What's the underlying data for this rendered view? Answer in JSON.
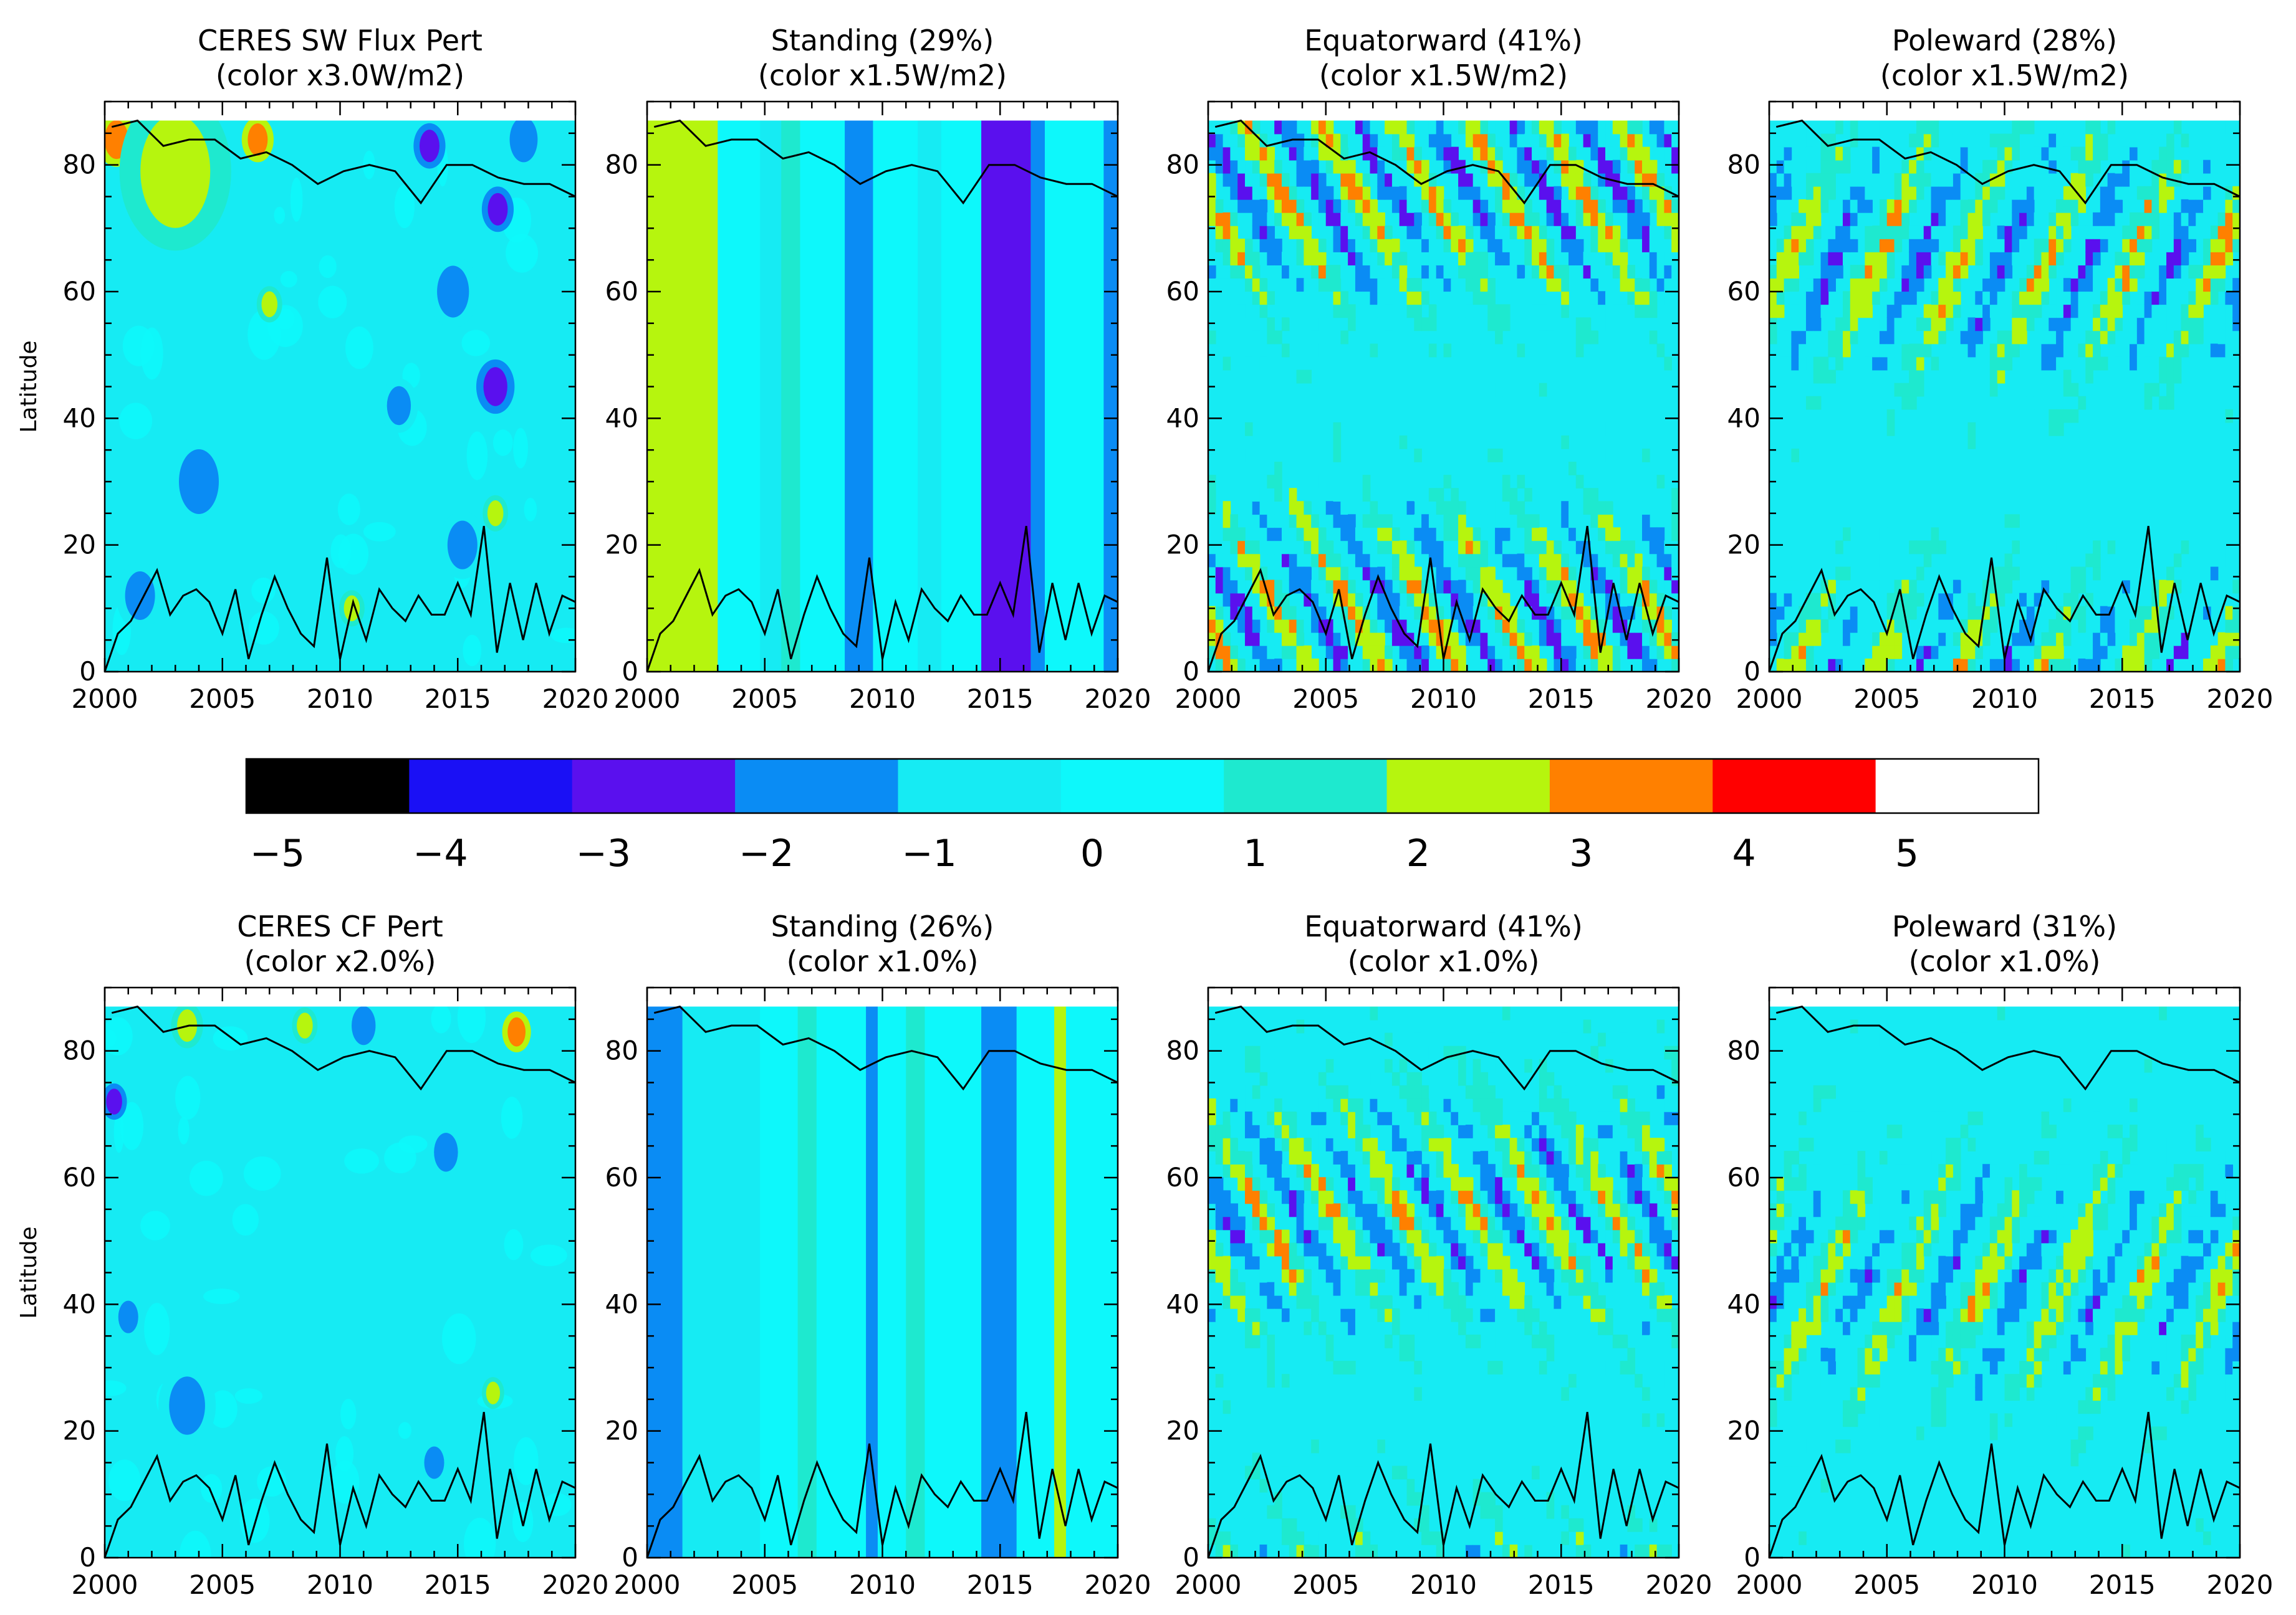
{
  "figure": {
    "colorbar": {
      "ticks": [
        "−5",
        "−4",
        "−3",
        "−2",
        "−1",
        "0",
        "1",
        "2",
        "3",
        "4",
        "5"
      ],
      "levels": 11,
      "colors": [
        "#000000",
        "#1a10f5",
        "#5a10ee",
        "#0a8cf4",
        "#16ebf3",
        "#0df8fb",
        "#1ee9cf",
        "#b6f50e",
        "#ff8000",
        "#ff0000",
        "#ffffff"
      ]
    }
  },
  "chart_data": [
    {
      "type": "heatmap",
      "panel": "sw-ceres",
      "title": [
        "CERES SW Flux Pert",
        "(color x3.0W/m2)"
      ],
      "ylabel": "Latitude",
      "x_ticks": [
        "2000",
        "2005",
        "2010",
        "2015",
        "2020"
      ],
      "y_ticks": [
        "0",
        "20",
        "40",
        "60",
        "80"
      ],
      "xlim": [
        2000,
        2020
      ],
      "ylim": [
        0,
        90
      ],
      "pattern": "ceres",
      "anomalies": [
        {
          "t": 2000.5,
          "lat": 84,
          "v": 3,
          "s": 1.2
        },
        {
          "t": 2003.0,
          "lat": 79,
          "v": 2,
          "s": 3.5
        },
        {
          "t": 2006.5,
          "lat": 84,
          "v": 3,
          "s": 1.0
        },
        {
          "t": 2013.8,
          "lat": 83,
          "v": -3,
          "s": 1.0
        },
        {
          "t": 2017.8,
          "lat": 84,
          "v": -2,
          "s": 1.4
        },
        {
          "t": 2014.8,
          "lat": 60,
          "v": -2,
          "s": 1.6
        },
        {
          "t": 2016.7,
          "lat": 73,
          "v": -3,
          "s": 1.0
        },
        {
          "t": 2016.6,
          "lat": 45,
          "v": -3,
          "s": 1.2
        },
        {
          "t": 2015.2,
          "lat": 20,
          "v": -2,
          "s": 1.5
        },
        {
          "t": 2007.0,
          "lat": 58,
          "v": 2,
          "s": 0.8
        },
        {
          "t": 2010.5,
          "lat": 10,
          "v": 2,
          "s": 0.8
        },
        {
          "t": 2016.6,
          "lat": 25,
          "v": 2,
          "s": 0.8
        },
        {
          "t": 2004.0,
          "lat": 30,
          "v": -2,
          "s": 2.0
        },
        {
          "t": 2012.5,
          "lat": 42,
          "v": -2,
          "s": 1.2
        },
        {
          "t": 2001.5,
          "lat": 12,
          "v": -2,
          "s": 1.5
        }
      ],
      "ice_series": [
        0,
        6,
        8,
        12,
        16,
        9,
        12,
        13,
        11,
        6,
        13,
        2,
        9,
        15,
        10,
        6,
        4,
        18,
        2,
        11,
        5,
        13,
        10,
        8,
        12,
        9,
        9,
        14,
        9,
        23,
        3,
        14,
        5,
        14,
        6,
        12,
        11
      ],
      "extent_series": [
        86,
        87,
        83,
        84,
        84,
        81,
        82,
        80,
        77,
        79,
        80,
        79,
        74,
        80,
        80,
        78,
        77,
        77,
        75
      ]
    },
    {
      "type": "heatmap",
      "panel": "sw-standing",
      "title": [
        "Standing (29%)",
        "(color x1.5W/m2)"
      ],
      "ylabel": "",
      "x_ticks": [
        "2000",
        "2005",
        "2010",
        "2015",
        "2020"
      ],
      "y_ticks": [
        "0",
        "20",
        "40",
        "60",
        "80"
      ],
      "xlim": [
        2000,
        2020
      ],
      "ylim": [
        0,
        90
      ],
      "pattern": "standing",
      "bands": [
        {
          "t0": 2000.0,
          "t1": 2003.0,
          "v": 2
        },
        {
          "t0": 2003.0,
          "t1": 2004.8,
          "v": 0
        },
        {
          "t0": 2004.8,
          "t1": 2005.7,
          "v": -1
        },
        {
          "t0": 2005.7,
          "t1": 2006.5,
          "v": 1
        },
        {
          "t0": 2006.5,
          "t1": 2008.4,
          "v": 0
        },
        {
          "t0": 2008.4,
          "t1": 2009.6,
          "v": -2
        },
        {
          "t0": 2009.6,
          "t1": 2011.5,
          "v": 0
        },
        {
          "t0": 2011.5,
          "t1": 2012.5,
          "v": -1
        },
        {
          "t0": 2012.5,
          "t1": 2014.2,
          "v": 0
        },
        {
          "t0": 2014.2,
          "t1": 2016.3,
          "v": -3
        },
        {
          "t0": 2016.3,
          "t1": 2016.9,
          "v": -2
        },
        {
          "t0": 2016.9,
          "t1": 2019.4,
          "v": 0
        },
        {
          "t0": 2019.4,
          "t1": 2020.0,
          "v": -2
        }
      ],
      "ice_series": [
        0,
        6,
        8,
        12,
        16,
        9,
        12,
        13,
        11,
        6,
        13,
        2,
        9,
        15,
        10,
        6,
        4,
        18,
        2,
        11,
        5,
        13,
        10,
        8,
        12,
        9,
        9,
        14,
        9,
        23,
        3,
        14,
        5,
        14,
        6,
        12,
        11
      ],
      "extent_series": [
        86,
        87,
        83,
        84,
        84,
        81,
        82,
        80,
        77,
        79,
        80,
        79,
        74,
        80,
        80,
        78,
        77,
        77,
        75
      ]
    },
    {
      "type": "heatmap",
      "panel": "sw-equatorward",
      "title": [
        "Equatorward (41%)",
        "(color x1.5W/m2)"
      ],
      "ylabel": "",
      "x_ticks": [
        "2000",
        "2005",
        "2010",
        "2015",
        "2020"
      ],
      "y_ticks": [
        "0",
        "20",
        "40",
        "60",
        "80"
      ],
      "xlim": [
        2000,
        2020
      ],
      "ylim": [
        0,
        90
      ],
      "pattern": "wave",
      "direction": "equatorward",
      "wave": {
        "speed": 7.0,
        "period": 3.2,
        "amp": 3.2,
        "seed": 1
      },
      "ice_series": [
        0,
        6,
        8,
        12,
        16,
        9,
        12,
        13,
        11,
        6,
        13,
        2,
        9,
        15,
        10,
        6,
        4,
        18,
        2,
        11,
        5,
        13,
        10,
        8,
        12,
        9,
        9,
        14,
        9,
        23,
        3,
        14,
        5,
        14,
        6,
        12,
        11
      ],
      "extent_series": [
        86,
        87,
        83,
        84,
        84,
        81,
        82,
        80,
        77,
        79,
        80,
        79,
        74,
        80,
        80,
        78,
        77,
        77,
        75
      ]
    },
    {
      "type": "heatmap",
      "panel": "sw-poleward",
      "title": [
        "Poleward (28%)",
        "(color x1.5W/m2)"
      ],
      "ylabel": "",
      "x_ticks": [
        "2000",
        "2005",
        "2010",
        "2015",
        "2020"
      ],
      "y_ticks": [
        "0",
        "20",
        "40",
        "60",
        "80"
      ],
      "xlim": [
        2000,
        2020
      ],
      "ylim": [
        0,
        90
      ],
      "pattern": "wave",
      "direction": "poleward",
      "wave": {
        "speed": 9.0,
        "period": 3.6,
        "amp": 2.8,
        "seed": 2
      },
      "ice_series": [
        0,
        6,
        8,
        12,
        16,
        9,
        12,
        13,
        11,
        6,
        13,
        2,
        9,
        15,
        10,
        6,
        4,
        18,
        2,
        11,
        5,
        13,
        10,
        8,
        12,
        9,
        9,
        14,
        9,
        23,
        3,
        14,
        5,
        14,
        6,
        12,
        11
      ],
      "extent_series": [
        86,
        87,
        83,
        84,
        84,
        81,
        82,
        80,
        77,
        79,
        80,
        79,
        74,
        80,
        80,
        78,
        77,
        77,
        75
      ]
    },
    {
      "type": "heatmap",
      "panel": "cf-ceres",
      "title": [
        "CERES CF Pert",
        "(color x2.0%)"
      ],
      "ylabel": "Latitude",
      "x_ticks": [
        "2000",
        "2005",
        "2010",
        "2015",
        "2020"
      ],
      "y_ticks": [
        "0",
        "20",
        "40",
        "60",
        "80"
      ],
      "xlim": [
        2000,
        2020
      ],
      "ylim": [
        0,
        90
      ],
      "pattern": "ceres",
      "anomalies": [
        {
          "t": 2000.4,
          "lat": 72,
          "v": -3,
          "s": 0.8
        },
        {
          "t": 2003.5,
          "lat": 84,
          "v": 2,
          "s": 1.0
        },
        {
          "t": 2008.5,
          "lat": 84,
          "v": 2,
          "s": 0.8
        },
        {
          "t": 2017.5,
          "lat": 83,
          "v": 3,
          "s": 0.9
        },
        {
          "t": 2014.5,
          "lat": 64,
          "v": -2,
          "s": 1.2
        },
        {
          "t": 2003.5,
          "lat": 24,
          "v": -2,
          "s": 1.8
        },
        {
          "t": 2016.5,
          "lat": 26,
          "v": 2,
          "s": 0.7
        },
        {
          "t": 2001.0,
          "lat": 38,
          "v": -2,
          "s": 1.0
        },
        {
          "t": 2014.0,
          "lat": 15,
          "v": -2,
          "s": 1.0
        },
        {
          "t": 2011.0,
          "lat": 84,
          "v": -2,
          "s": 1.2
        }
      ],
      "ice_series": [
        0,
        6,
        8,
        12,
        16,
        9,
        12,
        13,
        11,
        6,
        13,
        2,
        9,
        15,
        10,
        6,
        4,
        18,
        2,
        11,
        5,
        13,
        10,
        8,
        12,
        9,
        9,
        14,
        9,
        23,
        3,
        14,
        5,
        14,
        6,
        12,
        11
      ],
      "extent_series": [
        86,
        87,
        83,
        84,
        84,
        81,
        82,
        80,
        77,
        79,
        80,
        79,
        74,
        80,
        80,
        78,
        77,
        77,
        75
      ]
    },
    {
      "type": "heatmap",
      "panel": "cf-standing",
      "title": [
        "Standing (26%)",
        "(color x1.0%)"
      ],
      "ylabel": "",
      "x_ticks": [
        "2000",
        "2005",
        "2010",
        "2015",
        "2020"
      ],
      "y_ticks": [
        "0",
        "20",
        "40",
        "60",
        "80"
      ],
      "xlim": [
        2000,
        2020
      ],
      "ylim": [
        0,
        90
      ],
      "pattern": "standing",
      "bands": [
        {
          "t0": 2000.0,
          "t1": 2001.5,
          "v": -2
        },
        {
          "t0": 2001.5,
          "t1": 2004.8,
          "v": -1
        },
        {
          "t0": 2004.8,
          "t1": 2006.4,
          "v": 0
        },
        {
          "t0": 2006.4,
          "t1": 2007.2,
          "v": 1
        },
        {
          "t0": 2007.2,
          "t1": 2009.3,
          "v": 0
        },
        {
          "t0": 2009.3,
          "t1": 2009.8,
          "v": -2
        },
        {
          "t0": 2009.8,
          "t1": 2011.0,
          "v": 0
        },
        {
          "t0": 2011.0,
          "t1": 2011.8,
          "v": 1
        },
        {
          "t0": 2011.8,
          "t1": 2014.2,
          "v": 0
        },
        {
          "t0": 2014.2,
          "t1": 2015.7,
          "v": -2
        },
        {
          "t0": 2015.7,
          "t1": 2017.3,
          "v": 0
        },
        {
          "t0": 2017.3,
          "t1": 2017.8,
          "v": 2
        },
        {
          "t0": 2017.8,
          "t1": 2020.0,
          "v": 0
        }
      ],
      "ice_series": [
        0,
        6,
        8,
        12,
        16,
        9,
        12,
        13,
        11,
        6,
        13,
        2,
        9,
        15,
        10,
        6,
        4,
        18,
        2,
        11,
        5,
        13,
        10,
        8,
        12,
        9,
        9,
        14,
        9,
        23,
        3,
        14,
        5,
        14,
        6,
        12,
        11
      ],
      "extent_series": [
        86,
        87,
        83,
        84,
        84,
        81,
        82,
        80,
        77,
        79,
        80,
        79,
        74,
        80,
        80,
        78,
        77,
        77,
        75
      ]
    },
    {
      "type": "heatmap",
      "panel": "cf-equatorward",
      "title": [
        "Equatorward (41%)",
        "(color x1.0%)"
      ],
      "ylabel": "",
      "x_ticks": [
        "2000",
        "2005",
        "2010",
        "2015",
        "2020"
      ],
      "y_ticks": [
        "0",
        "20",
        "40",
        "60",
        "80"
      ],
      "xlim": [
        2000,
        2020
      ],
      "ylim": [
        0,
        90
      ],
      "pattern": "wave",
      "direction": "equatorward",
      "wave": {
        "speed": 7.0,
        "period": 3.0,
        "amp": 3.0,
        "seed": 3
      },
      "ice_series": [
        0,
        6,
        8,
        12,
        16,
        9,
        12,
        13,
        11,
        6,
        13,
        2,
        9,
        15,
        10,
        6,
        4,
        18,
        2,
        11,
        5,
        13,
        10,
        8,
        12,
        9,
        9,
        14,
        9,
        23,
        3,
        14,
        5,
        14,
        6,
        12,
        11
      ],
      "extent_series": [
        86,
        87,
        83,
        84,
        84,
        81,
        82,
        80,
        77,
        79,
        80,
        79,
        74,
        80,
        80,
        78,
        77,
        77,
        75
      ]
    },
    {
      "type": "heatmap",
      "panel": "cf-poleward",
      "title": [
        "Poleward (31%)",
        "(color x1.0%)"
      ],
      "ylabel": "",
      "x_ticks": [
        "2000",
        "2005",
        "2010",
        "2015",
        "2020"
      ],
      "y_ticks": [
        "0",
        "20",
        "40",
        "60",
        "80"
      ],
      "xlim": [
        2000,
        2020
      ],
      "ylim": [
        0,
        90
      ],
      "pattern": "wave",
      "direction": "poleward",
      "wave": {
        "speed": 9.0,
        "period": 3.4,
        "amp": 2.6,
        "seed": 4
      },
      "ice_series": [
        0,
        6,
        8,
        12,
        16,
        9,
        12,
        13,
        11,
        6,
        13,
        2,
        9,
        15,
        10,
        6,
        4,
        18,
        2,
        11,
        5,
        13,
        10,
        8,
        12,
        9,
        9,
        14,
        9,
        23,
        3,
        14,
        5,
        14,
        6,
        12,
        11
      ],
      "extent_series": [
        86,
        87,
        83,
        84,
        84,
        81,
        82,
        80,
        77,
        79,
        80,
        79,
        74,
        80,
        80,
        78,
        77,
        77,
        75
      ]
    }
  ]
}
